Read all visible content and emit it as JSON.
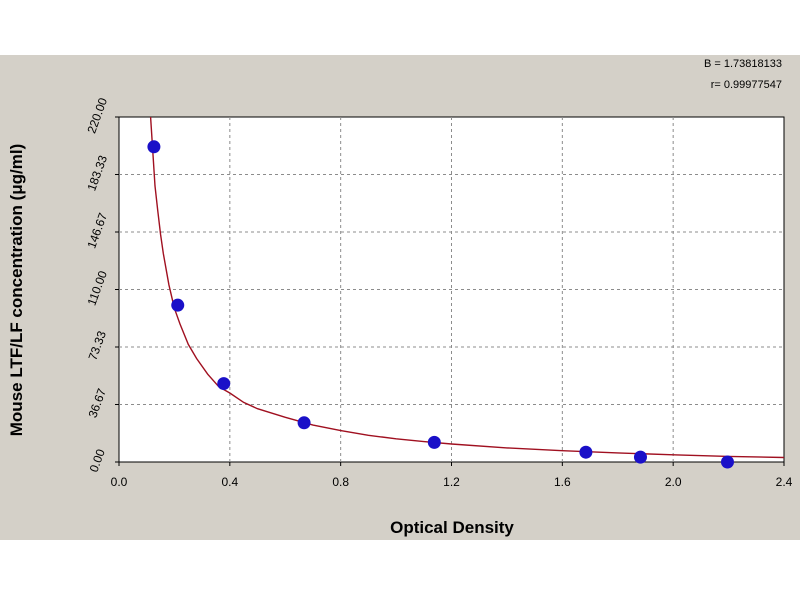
{
  "chart_data": {
    "type": "scatter",
    "xlabel": "Optical Density",
    "ylabel": "Mouse LTF/LF concentration (μg/ml)",
    "xlim": [
      0,
      2.4
    ],
    "ylim": [
      0,
      220
    ],
    "x_ticks": [
      "0.0",
      "0.4",
      "0.8",
      "1.2",
      "1.6",
      "2.0",
      "2.4"
    ],
    "y_ticks": [
      "0.00",
      "36.67",
      "73.33",
      "110.00",
      "146.67",
      "183.33",
      "220.00"
    ],
    "grid": true,
    "stats": [
      "B = 1.73818133",
      "r= 0.99977547"
    ],
    "series": [
      {
        "kind": "points",
        "color": "#1a10c8",
        "x": [
          0.126,
          0.212,
          0.378,
          0.668,
          1.138,
          1.685,
          1.882,
          2.196
        ],
        "y": [
          201,
          100,
          50,
          25,
          12.5,
          6.25,
          3.12,
          0
        ]
      },
      {
        "kind": "fitted-curve",
        "color": "#a01020",
        "x": [
          0.112,
          0.12,
          0.13,
          0.14,
          0.15,
          0.16,
          0.18,
          0.2,
          0.22,
          0.25,
          0.28,
          0.32,
          0.36,
          0.4,
          0.45,
          0.5,
          0.6,
          0.7,
          0.8,
          0.9,
          1.0,
          1.1,
          1.2,
          1.4,
          1.6,
          1.8,
          2.0,
          2.2,
          2.4
        ],
        "y": [
          226,
          203,
          176,
          160,
          145,
          133,
          113,
          98,
          88,
          75,
          66,
          56,
          48,
          44,
          38,
          34,
          28.5,
          23.5,
          20,
          17,
          14.8,
          13,
          11.5,
          9,
          7.2,
          5.8,
          4.6,
          3.6,
          2.9
        ]
      }
    ]
  }
}
